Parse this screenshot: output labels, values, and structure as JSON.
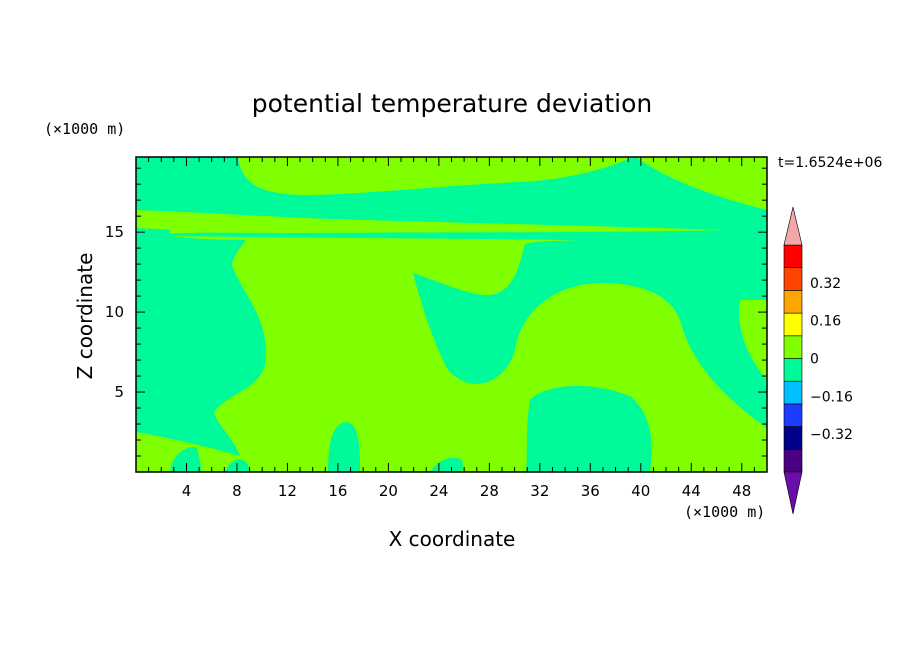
{
  "chart_data": {
    "type": "contour",
    "title": "potential temperature deviation",
    "xlabel": "X coordinate",
    "ylabel": "Z coordinate",
    "x_unit": "(×1000 m)",
    "y_unit": "(×1000 m)",
    "time_label": "t=1.6524e+06",
    "xlim": [
      0,
      50
    ],
    "ylim": [
      0,
      19.7
    ],
    "xticks": [
      4,
      8,
      12,
      16,
      20,
      24,
      28,
      32,
      36,
      40,
      44,
      48
    ],
    "yticks": [
      5,
      10,
      15
    ],
    "colorbar": {
      "levels": [
        -0.48,
        -0.4,
        -0.32,
        -0.24,
        -0.16,
        -0.08,
        0,
        0.08,
        0.16,
        0.24,
        0.32,
        0.4,
        0.48
      ],
      "colors": [
        "#4B0082",
        "#00008B",
        "#1E3CFF",
        "#00BFFF",
        "#00FA9A",
        "#80FF00",
        "#FFFF00",
        "#FFA500",
        "#FF4500",
        "#FF0000"
      ],
      "under_color": "#6A0DAD",
      "over_color": "#F4A7A7",
      "tick_labels": [
        "0.32",
        "0.16",
        "0",
        "−0.16",
        "−0.32"
      ],
      "tick_values": [
        0.32,
        0.16,
        0,
        -0.16,
        -0.32
      ]
    },
    "field": {
      "background_level": "-0.08 to 0",
      "background_color": "#00FA9A",
      "positive_region_color": "#80FF00",
      "positive_region_level": "0 to 0.08"
    }
  }
}
